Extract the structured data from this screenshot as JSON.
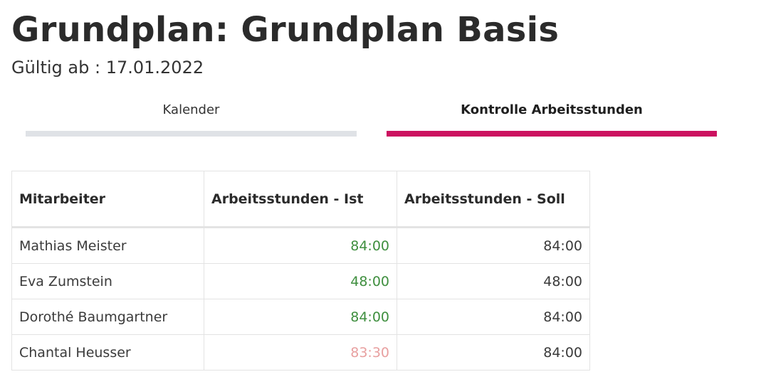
{
  "header": {
    "title": "Grundplan: Grundplan Basis",
    "valid_from": "Gültig ab : 17.01.2022"
  },
  "tabs": [
    {
      "label": "Kalender",
      "active": false
    },
    {
      "label": "Kontrolle Arbeitsstunden",
      "active": true
    }
  ],
  "colors": {
    "active_tab": "#cc1260",
    "inactive_tab": "#dfe2e6",
    "hours_match": "#3f8f3f",
    "hours_short": "#e8a0a0"
  },
  "table": {
    "columns": [
      "Mitarbeiter",
      "Arbeitsstunden - Ist",
      "Arbeitsstunden - Soll"
    ],
    "rows": [
      {
        "name": "Mathias Meister",
        "ist": "84:00",
        "soll": "84:00",
        "status": "ok"
      },
      {
        "name": "Eva Zumstein",
        "ist": "48:00",
        "soll": "48:00",
        "status": "ok"
      },
      {
        "name": "Dorothé Baumgartner",
        "ist": "84:00",
        "soll": "84:00",
        "status": "ok"
      },
      {
        "name": "Chantal Heusser",
        "ist": "83:30",
        "soll": "84:00",
        "status": "warn"
      }
    ]
  }
}
